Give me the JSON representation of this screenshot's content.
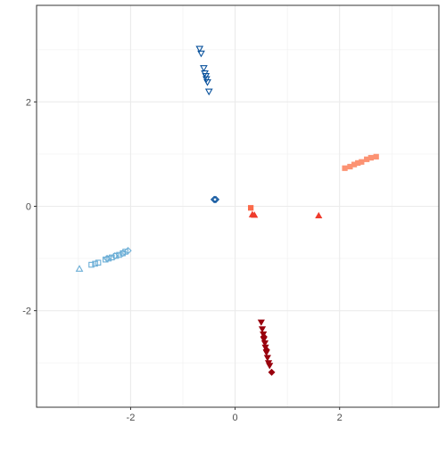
{
  "chart_data": {
    "type": "scatter",
    "title": "",
    "xlabel": "",
    "ylabel": "",
    "xlim": [
      -3.8,
      3.9
    ],
    "ylim": [
      -3.85,
      3.85
    ],
    "x_ticks": [
      -2,
      0,
      2
    ],
    "y_ticks": [
      -2,
      0,
      2
    ],
    "x_tick_labels": [
      "-2",
      "0",
      "2"
    ],
    "y_tick_labels": [
      "-2",
      "0",
      "2"
    ],
    "grid": true,
    "legend": "none",
    "series": [
      {
        "shape": "triangle-up-open",
        "color": "#6BAED6",
        "points": [
          [
            -2.98,
            -1.2
          ]
        ]
      },
      {
        "shape": "square-open",
        "color": "#6BAED6",
        "points": [
          [
            -2.75,
            -1.12
          ],
          [
            -2.68,
            -1.1
          ],
          [
            -2.62,
            -1.08
          ],
          [
            -2.48,
            -1.02
          ],
          [
            -2.42,
            -1.0
          ],
          [
            -2.36,
            -0.98
          ],
          [
            -2.28,
            -0.95
          ],
          [
            -2.22,
            -0.93
          ],
          [
            -2.15,
            -0.9
          ],
          [
            -2.1,
            -0.87
          ]
        ]
      },
      {
        "shape": "diamond-open",
        "color": "#6BAED6",
        "points": [
          [
            -2.45,
            -1.0
          ],
          [
            -2.3,
            -0.95
          ],
          [
            -2.15,
            -0.9
          ],
          [
            -2.05,
            -0.85
          ]
        ]
      },
      {
        "shape": "triangle-down-open",
        "color": "#08519C",
        "points": [
          [
            -0.68,
            3.02
          ],
          [
            -0.65,
            2.93
          ],
          [
            -0.6,
            2.65
          ],
          [
            -0.58,
            2.55
          ],
          [
            -0.56,
            2.5
          ],
          [
            -0.55,
            2.44
          ],
          [
            -0.53,
            2.38
          ],
          [
            -0.5,
            2.2
          ]
        ]
      },
      {
        "shape": "diamond-open",
        "color": "#08519C",
        "points": [
          [
            -0.4,
            0.13
          ],
          [
            -0.37,
            0.13
          ]
        ]
      },
      {
        "shape": "square",
        "color": "#FC9272",
        "points": [
          [
            2.1,
            0.73
          ],
          [
            2.2,
            0.76
          ],
          [
            2.28,
            0.8
          ],
          [
            2.35,
            0.83
          ],
          [
            2.42,
            0.85
          ],
          [
            2.52,
            0.9
          ],
          [
            2.6,
            0.93
          ],
          [
            2.7,
            0.95
          ]
        ]
      },
      {
        "shape": "square",
        "color": "#FB6A4A",
        "points": [
          [
            0.3,
            -0.03
          ]
        ]
      },
      {
        "shape": "triangle-up",
        "color": "#EF3B2C",
        "points": [
          [
            0.33,
            -0.16
          ],
          [
            0.37,
            -0.17
          ],
          [
            1.6,
            -0.18
          ]
        ]
      },
      {
        "shape": "triangle-down",
        "color": "#99000D",
        "points": [
          [
            0.5,
            -2.22
          ],
          [
            0.52,
            -2.35
          ],
          [
            0.54,
            -2.45
          ],
          [
            0.55,
            -2.55
          ],
          [
            0.57,
            -2.62
          ],
          [
            0.58,
            -2.7
          ],
          [
            0.6,
            -2.8
          ],
          [
            0.62,
            -2.9
          ],
          [
            0.64,
            -3.0
          ],
          [
            0.66,
            -3.05
          ]
        ]
      },
      {
        "shape": "diamond",
        "color": "#99000D",
        "points": [
          [
            0.55,
            -2.5
          ],
          [
            0.6,
            -2.75
          ],
          [
            0.7,
            -3.18
          ]
        ]
      }
    ]
  }
}
